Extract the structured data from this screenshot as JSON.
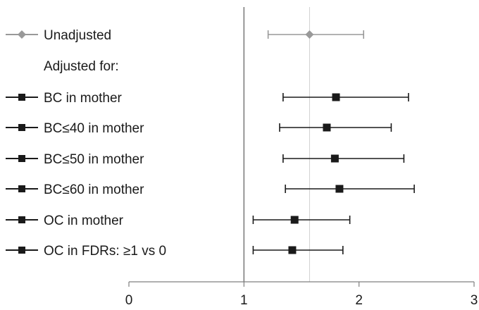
{
  "chart_data": {
    "type": "scatter",
    "subtype": "forest-plot",
    "title": "",
    "xlabel": "",
    "ylabel": "",
    "xlim": [
      0,
      3
    ],
    "x_ticks": [
      "0",
      "1",
      "2",
      "3"
    ],
    "reference_line": 1,
    "secondary_reference_line": 1.57,
    "grid": false,
    "legend": "left-inline",
    "colors": {
      "unadjusted": "#999999",
      "adjusted": "#1a1a1a",
      "ref": "#7f7f7f",
      "ref2": "#d0d0d0"
    },
    "header_label": "Adjusted for:",
    "series": [
      {
        "name": "Unadjusted",
        "marker": "diamond",
        "color": "#999999",
        "estimate": 1.57,
        "ci": [
          1.21,
          2.04
        ]
      },
      {
        "name": "BC in mother",
        "marker": "square",
        "color": "#1a1a1a",
        "estimate": 1.8,
        "ci": [
          1.34,
          2.43
        ]
      },
      {
        "name": "BC≤40 in mother",
        "marker": "square",
        "color": "#1a1a1a",
        "estimate": 1.72,
        "ci": [
          1.31,
          2.28
        ]
      },
      {
        "name": "BC≤50 in mother",
        "marker": "square",
        "color": "#1a1a1a",
        "estimate": 1.79,
        "ci": [
          1.34,
          2.39
        ]
      },
      {
        "name": "BC≤60 in mother",
        "marker": "square",
        "color": "#1a1a1a",
        "estimate": 1.83,
        "ci": [
          1.36,
          2.48
        ]
      },
      {
        "name": "OC in mother",
        "marker": "square",
        "color": "#1a1a1a",
        "estimate": 1.44,
        "ci": [
          1.08,
          1.92
        ]
      },
      {
        "name": "OC in FDRs: ≥1 vs 0",
        "marker": "square",
        "color": "#1a1a1a",
        "estimate": 1.42,
        "ci": [
          1.08,
          1.86
        ]
      }
    ]
  }
}
